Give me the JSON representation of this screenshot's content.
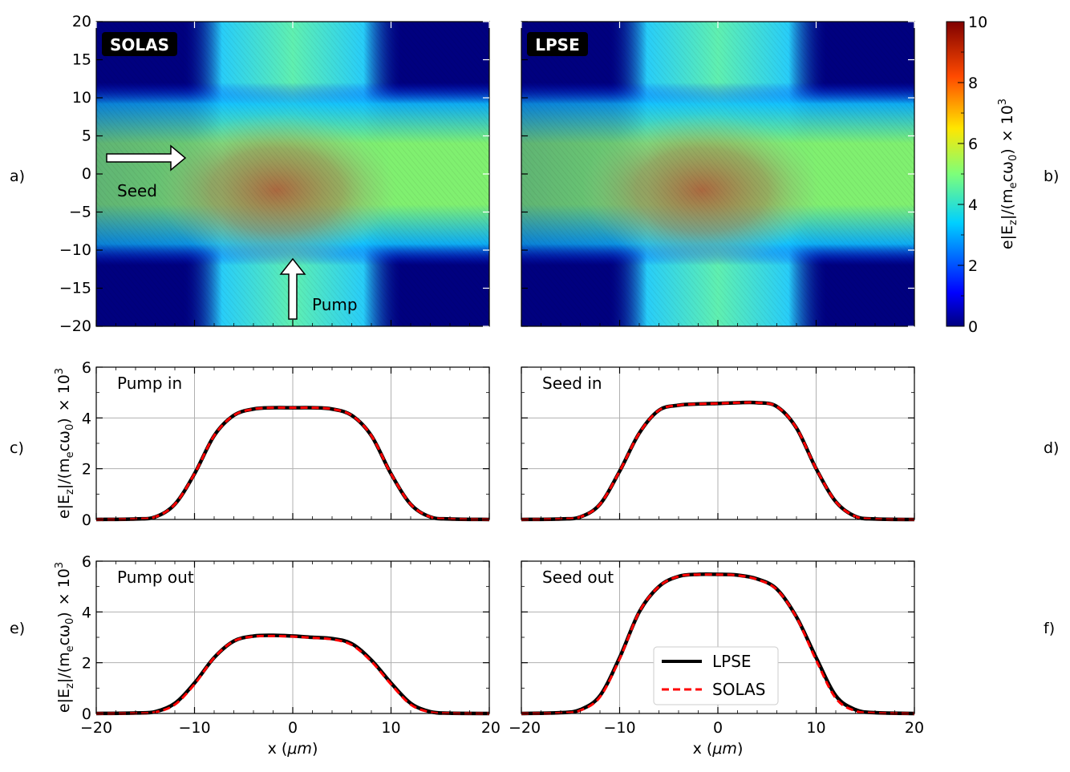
{
  "panel_letters": [
    "a)",
    "b)",
    "c)",
    "d)",
    "e)",
    "f)"
  ],
  "colorbar": {
    "label_main": "e|E",
    "label_sub": "z",
    "label_mid": "|/(m",
    "label_sub2": "e",
    "label_mid2": "cω",
    "label_sub3": "0",
    "label_end": ")",
    "label_scale": "× 10",
    "label_exp": "3",
    "ticks": [
      "0",
      "2",
      "4",
      "6",
      "8",
      "10"
    ],
    "range": [
      0,
      10
    ],
    "colormap": "jet"
  },
  "maps": [
    {
      "title": "SOLAS",
      "annotations": {
        "seed": "Seed",
        "pump": "Pump"
      }
    },
    {
      "title": "LPSE"
    }
  ],
  "map_axes": {
    "yticks": [
      "20",
      "15",
      "10",
      "5",
      "0",
      "−5",
      "−10",
      "−15",
      "−20"
    ],
    "xlim": [
      -20,
      20
    ],
    "ylim": [
      -20,
      20
    ]
  },
  "line_axes": {
    "ylabel_main": "e|E",
    "ylabel_sub": "z",
    "ylabel_mid": "|/(m",
    "ylabel_sub2": "e",
    "ylabel_mid2": "cω",
    "ylabel_sub3": "0",
    "ylabel_end": ")",
    "ylabel_scale": "× 10",
    "ylabel_exp": "3",
    "yticks": [
      "0",
      "2",
      "4",
      "6"
    ],
    "xticks": [
      "−20",
      "−10",
      "0",
      "10",
      "20"
    ],
    "xlabel": "x (",
    "xlabel_unit": "μm",
    "xlabel_end": ")",
    "xlim": [
      -20,
      20
    ],
    "ylim": [
      0,
      6
    ]
  },
  "legend": {
    "entries": [
      {
        "name": "LPSE",
        "color": "#000000",
        "style": "solid"
      },
      {
        "name": "SOLAS",
        "color": "#ff0000",
        "style": "dashed"
      }
    ]
  },
  "chart_data": [
    {
      "type": "heatmap",
      "title": "SOLAS",
      "xlim": [
        -20,
        20
      ],
      "ylim": [
        -20,
        20
      ],
      "zlim": [
        0,
        10
      ],
      "peak_approx": 9,
      "peak_at": [
        -2,
        -2
      ]
    },
    {
      "type": "heatmap",
      "title": "LPSE",
      "xlim": [
        -20,
        20
      ],
      "ylim": [
        -20,
        20
      ],
      "zlim": [
        0,
        10
      ],
      "peak_approx": 9,
      "peak_at": [
        -2,
        -2
      ]
    },
    {
      "type": "line",
      "title": "Pump in",
      "xlim": [
        -20,
        20
      ],
      "ylim": [
        0,
        6
      ],
      "series": [
        {
          "name": "LPSE",
          "x": [
            -20,
            -16,
            -14,
            -12,
            -10,
            -8,
            -6,
            -4,
            -2,
            0,
            2,
            4,
            6,
            8,
            10,
            12,
            14,
            16,
            20
          ],
          "y": [
            0,
            0.02,
            0.1,
            0.6,
            1.8,
            3.3,
            4.1,
            4.35,
            4.4,
            4.4,
            4.4,
            4.35,
            4.1,
            3.3,
            1.8,
            0.6,
            0.1,
            0.02,
            0
          ]
        },
        {
          "name": "SOLAS",
          "x": [
            -20,
            -16,
            -14,
            -12,
            -10,
            -8,
            -6,
            -4,
            -2,
            0,
            2,
            4,
            6,
            8,
            10,
            12,
            14,
            16,
            20
          ],
          "y": [
            0,
            0.02,
            0.1,
            0.6,
            1.8,
            3.3,
            4.1,
            4.35,
            4.4,
            4.4,
            4.4,
            4.35,
            4.1,
            3.3,
            1.8,
            0.6,
            0.1,
            0.02,
            0
          ]
        }
      ]
    },
    {
      "type": "line",
      "title": "Seed in",
      "xlim": [
        -20,
        20
      ],
      "ylim": [
        0,
        6
      ],
      "series": [
        {
          "name": "LPSE",
          "x": [
            -20,
            -16,
            -14,
            -12,
            -10,
            -8,
            -6,
            -4,
            -2,
            0,
            2,
            4,
            6,
            8,
            10,
            12,
            14,
            16,
            20
          ],
          "y": [
            0,
            0.02,
            0.1,
            0.6,
            1.9,
            3.4,
            4.3,
            4.5,
            4.55,
            4.57,
            4.6,
            4.6,
            4.45,
            3.6,
            2.0,
            0.7,
            0.12,
            0.02,
            0
          ]
        },
        {
          "name": "SOLAS",
          "x": [
            -20,
            -16,
            -14,
            -12,
            -10,
            -8,
            -6,
            -4,
            -2,
            0,
            2,
            4,
            6,
            8,
            10,
            12,
            14,
            16,
            20
          ],
          "y": [
            0,
            0.02,
            0.1,
            0.6,
            1.9,
            3.4,
            4.3,
            4.5,
            4.55,
            4.57,
            4.6,
            4.6,
            4.45,
            3.6,
            2.0,
            0.7,
            0.12,
            0.02,
            0
          ]
        }
      ]
    },
    {
      "type": "line",
      "title": "Pump out",
      "xlim": [
        -20,
        20
      ],
      "ylim": [
        0,
        6
      ],
      "series": [
        {
          "name": "LPSE",
          "x": [
            -20,
            -16,
            -14,
            -12,
            -10,
            -8,
            -6,
            -4,
            -2,
            0,
            2,
            4,
            6,
            8,
            10,
            12,
            14,
            16,
            20
          ],
          "y": [
            0,
            0.02,
            0.07,
            0.4,
            1.2,
            2.2,
            2.85,
            3.05,
            3.08,
            3.05,
            3.0,
            2.95,
            2.75,
            2.1,
            1.2,
            0.4,
            0.07,
            0.01,
            0
          ]
        },
        {
          "name": "SOLAS",
          "x": [
            -20,
            -16,
            -14,
            -12,
            -10,
            -8,
            -6,
            -4,
            -2,
            0,
            2,
            4,
            6,
            8,
            10,
            12,
            14,
            16,
            20
          ],
          "y": [
            0,
            0.01,
            0.05,
            0.35,
            1.15,
            2.2,
            2.85,
            3.03,
            3.05,
            3.03,
            2.98,
            2.92,
            2.7,
            2.05,
            1.15,
            0.35,
            0.05,
            0.01,
            0
          ]
        }
      ]
    },
    {
      "type": "line",
      "title": "Seed out",
      "xlim": [
        -20,
        20
      ],
      "ylim": [
        0,
        6
      ],
      "series": [
        {
          "name": "LPSE",
          "x": [
            -20,
            -16,
            -14,
            -12,
            -10,
            -8,
            -6,
            -4,
            -2,
            0,
            2,
            4,
            6,
            8,
            10,
            12,
            14,
            16,
            20
          ],
          "y": [
            0,
            0.03,
            0.15,
            0.7,
            2.2,
            4.0,
            5.0,
            5.4,
            5.48,
            5.48,
            5.45,
            5.3,
            4.9,
            3.8,
            2.2,
            0.7,
            0.15,
            0.03,
            0
          ]
        },
        {
          "name": "SOLAS",
          "x": [
            -20,
            -16,
            -14,
            -12,
            -10,
            -8,
            -6,
            -4,
            -2,
            0,
            2,
            4,
            6,
            8,
            10,
            12,
            14,
            16,
            20
          ],
          "y": [
            0,
            0.02,
            0.12,
            0.65,
            2.15,
            4.0,
            5.0,
            5.4,
            5.47,
            5.47,
            5.44,
            5.28,
            4.88,
            3.78,
            2.1,
            0.6,
            0.1,
            0.02,
            0
          ]
        }
      ]
    }
  ]
}
